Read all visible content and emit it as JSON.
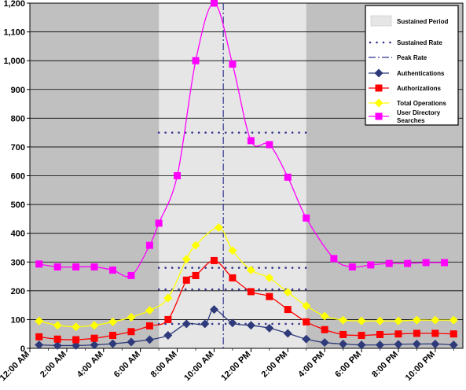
{
  "chart_data": {
    "type": "line",
    "title": "",
    "xlabel": "",
    "ylabel": "",
    "ylim": [
      0,
      1200
    ],
    "yticks": [
      0,
      100,
      200,
      300,
      400,
      500,
      600,
      700,
      800,
      900,
      1000,
      1100,
      1200
    ],
    "ytick_labels": [
      "0",
      "100",
      "200",
      "300",
      "400",
      "500",
      "600",
      "700",
      "800",
      "900",
      "1,000",
      "1,100",
      "1,200"
    ],
    "xlim": [
      0,
      23.5
    ],
    "xticks": [
      0,
      2,
      4,
      6,
      8,
      10,
      12,
      14,
      16,
      18,
      20,
      22
    ],
    "xtick_labels": [
      "12:00 AM",
      "2:00 AM",
      "4:00 AM",
      "6:00 AM",
      "8:00 AM",
      "10:00 AM",
      "12:00 PM",
      "2:00 PM",
      "4:00 PM",
      "6:00 PM",
      "8:00 PM",
      "10:00 PM"
    ],
    "grid": true,
    "legend_position": "top-right",
    "sustained_period": [
      7,
      15
    ],
    "peak_time": 10.5,
    "colors": {
      "off_peak_background": "#c0c0c0",
      "sustained_background": "#e6e6e6",
      "reference_lines": "#33338c"
    },
    "legend": [
      {
        "label": "Sustained Period",
        "kind": "area"
      },
      {
        "label": "Sustained Rate",
        "kind": "dots"
      },
      {
        "label": "Peak  Rate",
        "kind": "dashdot"
      },
      {
        "label": "Authentications",
        "kind": "series",
        "series_index": 0
      },
      {
        "label": "Authorizations",
        "kind": "series",
        "series_index": 1
      },
      {
        "label": "Total Operations",
        "kind": "series",
        "series_index": 2
      },
      {
        "label": "User Directory Searches",
        "lines": [
          "User Directory",
          "Searches"
        ],
        "kind": "series",
        "series_index": 3
      }
    ],
    "sustained_rates": [
      750,
      280,
      205,
      85
    ],
    "series": [
      {
        "name": "Authentications",
        "color": "#2e3a7a",
        "marker": "diamond",
        "x": [
          0.5,
          1.5,
          2.5,
          3.5,
          4.5,
          5.5,
          6.5,
          7.5,
          8.5,
          9.5,
          10,
          11,
          12,
          13,
          14,
          15,
          16,
          17,
          18,
          19,
          20,
          21,
          22,
          23
        ],
        "y": [
          12,
          10,
          10,
          12,
          16,
          22,
          30,
          45,
          85,
          85,
          135,
          88,
          80,
          70,
          52,
          32,
          20,
          15,
          12,
          12,
          14,
          15,
          15,
          12
        ]
      },
      {
        "name": "Authorizations",
        "color": "#ff0000",
        "marker": "square",
        "x": [
          0.5,
          1.5,
          2.5,
          3.5,
          4.5,
          5.5,
          6.5,
          7.5,
          8.5,
          9,
          10,
          11,
          12,
          13,
          14,
          15,
          16,
          17,
          18,
          19,
          20,
          21,
          22,
          23
        ],
        "y": [
          40,
          32,
          30,
          35,
          45,
          58,
          78,
          100,
          237,
          253,
          305,
          245,
          197,
          180,
          135,
          92,
          65,
          48,
          45,
          48,
          50,
          52,
          52,
          50
        ]
      },
      {
        "name": "Total Operations",
        "color": "#ffff00",
        "marker": "diamond",
        "x": [
          0.5,
          1.5,
          2.5,
          3.5,
          4.5,
          5.5,
          6.5,
          7.5,
          8.5,
          9,
          10.25,
          11,
          12,
          13,
          14,
          15,
          16,
          17,
          18,
          19,
          20,
          21,
          22,
          23
        ],
        "y": [
          95,
          80,
          75,
          80,
          92,
          108,
          132,
          175,
          310,
          358,
          420,
          340,
          272,
          245,
          195,
          148,
          112,
          98,
          95,
          95,
          95,
          98,
          98,
          98
        ]
      },
      {
        "name": "User Directory Searches",
        "color": "#ff00ff",
        "marker": "square",
        "x": [
          0.5,
          1.5,
          2.5,
          3.5,
          4.5,
          5.5,
          6.5,
          7,
          8,
          9,
          10,
          11,
          12,
          13,
          14,
          15,
          16.5,
          17.5,
          18.5,
          19.5,
          20.5,
          21.5,
          22.5
        ],
        "y": [
          293,
          283,
          283,
          283,
          272,
          253,
          358,
          435,
          600,
          1000,
          1200,
          988,
          722,
          708,
          595,
          453,
          312,
          283,
          290,
          295,
          295,
          298,
          298
        ]
      }
    ]
  }
}
